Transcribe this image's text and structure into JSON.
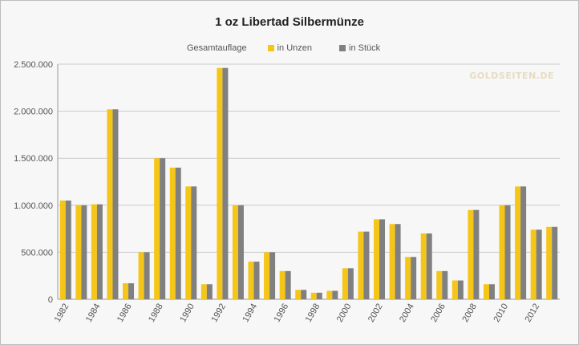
{
  "chart_data": {
    "type": "bar",
    "title": "1 oz Libertad Silbermünze",
    "legend_title": "Gesamtauflage",
    "categories": [
      "1982",
      "1983",
      "1984",
      "1985",
      "1986",
      "1987",
      "1988",
      "1989",
      "1990",
      "1991",
      "1992",
      "1993",
      "1994",
      "1995",
      "1996",
      "1997",
      "1998",
      "1999",
      "2000",
      "2001",
      "2002",
      "2003",
      "2004",
      "2005",
      "2006",
      "2007",
      "2008",
      "2009",
      "2010",
      "2011",
      "2012",
      "2013"
    ],
    "tick_labels": [
      "1982",
      "1984",
      "1986",
      "1988",
      "1990",
      "1992",
      "1994",
      "1996",
      "1998",
      "2000",
      "2002",
      "2004",
      "2006",
      "2008",
      "2010",
      "2012"
    ],
    "series": [
      {
        "name": "in Unzen",
        "color": "#f5c518",
        "values": [
          1050000,
          1000000,
          1010000,
          2020000,
          170000,
          500000,
          1500000,
          1400000,
          1200000,
          160000,
          2460000,
          1000000,
          400000,
          500000,
          300000,
          100000,
          70000,
          90000,
          330000,
          720000,
          850000,
          800000,
          450000,
          700000,
          300000,
          200000,
          950000,
          160000,
          1000000,
          1200000,
          740000,
          770000
        ]
      },
      {
        "name": "in Stück",
        "color": "#808080",
        "values": [
          1050000,
          1000000,
          1010000,
          2020000,
          170000,
          500000,
          1500000,
          1400000,
          1200000,
          160000,
          2460000,
          1000000,
          400000,
          500000,
          300000,
          100000,
          70000,
          90000,
          330000,
          720000,
          850000,
          800000,
          450000,
          700000,
          300000,
          200000,
          950000,
          160000,
          1000000,
          1200000,
          740000,
          770000
        ]
      }
    ],
    "ylim": [
      0,
      2500000
    ],
    "y_ticks": [
      0,
      500000,
      1000000,
      1500000,
      2000000,
      2500000
    ],
    "y_tick_labels": [
      "0",
      "500.000",
      "1.000.000",
      "1.500.000",
      "2.000.000",
      "2.500.000"
    ],
    "grid": true,
    "legend_position": "top"
  },
  "watermark": "GOLDSEITEN.DE"
}
